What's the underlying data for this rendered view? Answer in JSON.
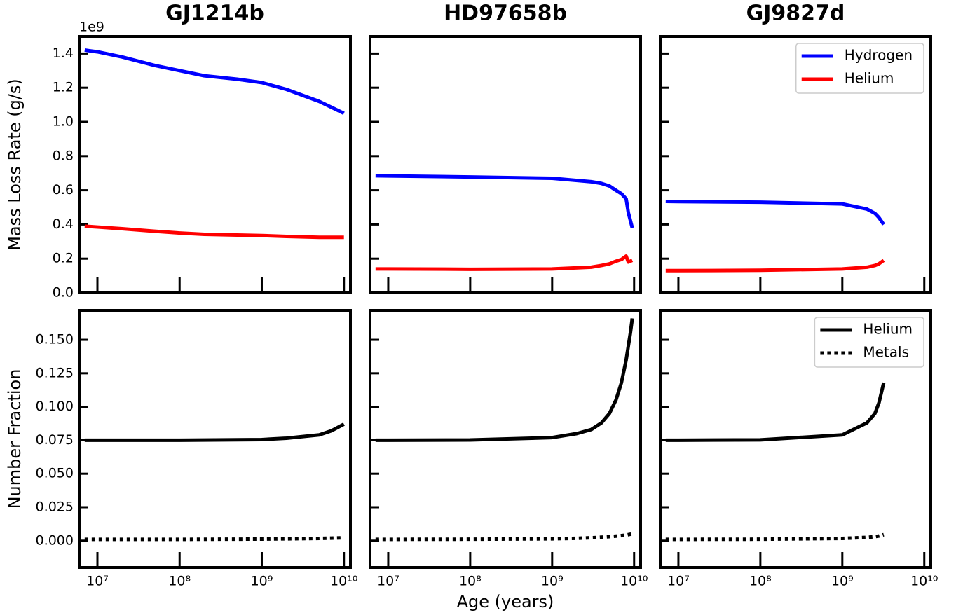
{
  "chart_data": [
    {
      "type": "line",
      "title": "GJ1214b",
      "ylabel": "Mass Loss Rate (g/s)",
      "offset_label": "1e9",
      "xscale": "log",
      "x": [
        7000000,
        10000000,
        20000000,
        50000000,
        100000000,
        200000000,
        500000000,
        1000000000,
        2000000000,
        5000000000,
        10000000000
      ],
      "series": [
        {
          "color": "#0000ff",
          "values": [
            1.42,
            1.41,
            1.38,
            1.33,
            1.3,
            1.27,
            1.25,
            1.23,
            1.19,
            1.12,
            1.05
          ]
        },
        {
          "color": "#ff0000",
          "values": [
            0.39,
            0.385,
            0.375,
            0.36,
            0.35,
            0.342,
            0.338,
            0.335,
            0.33,
            0.325,
            0.325
          ]
        }
      ],
      "xlim": [
        6000000,
        12000000000
      ],
      "ylim": [
        0,
        1.5
      ],
      "xticks": [
        10000000,
        100000000,
        1000000000,
        10000000000
      ],
      "xticklabels": false,
      "yticks": [
        {
          "value": 0,
          "label": "0.0"
        },
        0.2,
        0.4,
        0.6,
        0.8,
        {
          "value": 1,
          "label": "1.0"
        },
        1.2,
        1.4
      ],
      "yticklabels": true
    },
    {
      "type": "line",
      "title": "HD97658b",
      "xscale": "log",
      "x": [
        7000000,
        10000000,
        100000000,
        1000000000,
        3000000000,
        4000000000,
        5000000000,
        6000000000,
        7000000000,
        8000000000,
        8500000000,
        9500000000
      ],
      "series": [
        {
          "color": "#0000ff",
          "values": [
            0.685,
            0.684,
            0.678,
            0.67,
            0.65,
            0.64,
            0.625,
            0.6,
            0.58,
            0.55,
            0.47,
            0.38
          ]
        },
        {
          "color": "#ff0000",
          "values": [
            0.14,
            0.14,
            0.138,
            0.14,
            0.15,
            0.16,
            0.17,
            0.185,
            0.195,
            0.215,
            0.18,
            0.19
          ]
        }
      ],
      "xlim": [
        6000000,
        12000000000
      ],
      "ylim": [
        0,
        1.5
      ],
      "xticks": [
        10000000,
        100000000,
        1000000000,
        10000000000
      ],
      "xticklabels": false,
      "yticks": [
        0,
        0.2,
        0.4,
        0.6,
        0.8,
        1,
        1.2,
        1.4
      ],
      "yticklabels": false
    },
    {
      "type": "line",
      "title": "GJ9827d",
      "xscale": "log",
      "legend": "upper right",
      "x": [
        7000000,
        10000000,
        100000000,
        1000000000,
        2000000000,
        2500000000,
        2800000000,
        3200000000
      ],
      "series": [
        {
          "name": "Hydrogen",
          "color": "#0000ff",
          "values": [
            0.535,
            0.534,
            0.53,
            0.52,
            0.49,
            0.465,
            0.44,
            0.4
          ]
        },
        {
          "name": "Helium",
          "color": "#ff0000",
          "values": [
            0.13,
            0.13,
            0.132,
            0.14,
            0.15,
            0.16,
            0.17,
            0.19
          ]
        }
      ],
      "xlim": [
        6000000,
        12000000000
      ],
      "ylim": [
        0,
        1.5
      ],
      "xticks": [
        10000000,
        100000000,
        1000000000,
        10000000000
      ],
      "xticklabels": false,
      "yticks": [
        0,
        0.2,
        0.4,
        0.6,
        0.8,
        1,
        1.2,
        1.4
      ],
      "yticklabels": false
    },
    {
      "type": "line",
      "ylabel": "Number Fraction",
      "xscale": "log",
      "x": [
        7000000,
        10000000,
        100000000,
        1000000000,
        2000000000,
        5000000000,
        7000000000,
        10000000000
      ],
      "series": [
        {
          "color": "#000000",
          "values": [
            0.075,
            0.075,
            0.075,
            0.0755,
            0.0765,
            0.079,
            0.082,
            0.087
          ]
        },
        {
          "color": "#000000",
          "dash": "dotted",
          "values": [
            0.001,
            0.001,
            0.001,
            0.0012,
            0.0014,
            0.0017,
            0.0019,
            0.0022
          ]
        }
      ],
      "xlim": [
        6000000,
        12000000000
      ],
      "ylim": [
        -0.02,
        0.172
      ],
      "xticks": [
        {
          "value": 10000000,
          "label": "10⁷"
        },
        {
          "value": 100000000,
          "label": "10⁸"
        },
        {
          "value": 1000000000,
          "label": "10⁹"
        },
        {
          "value": 10000000000,
          "label": "10¹⁰"
        }
      ],
      "xticklabels": true,
      "yticks": [
        {
          "value": 0,
          "label": "0.000"
        },
        0.025,
        {
          "value": 0.05,
          "label": "0.050"
        },
        0.075,
        {
          "value": 0.1,
          "label": "0.100"
        },
        0.125,
        {
          "value": 0.15,
          "label": "0.150"
        }
      ],
      "yticklabels": true
    },
    {
      "type": "line",
      "xlabel": "Age (years)",
      "xscale": "log",
      "x": [
        7000000,
        10000000,
        100000000,
        1000000000,
        2000000000,
        3000000000,
        4000000000,
        5000000000,
        6000000000,
        7000000000,
        8000000000,
        9000000000,
        9500000000
      ],
      "series": [
        {
          "color": "#000000",
          "values": [
            0.075,
            0.075,
            0.0752,
            0.077,
            0.08,
            0.083,
            0.088,
            0.095,
            0.105,
            0.118,
            0.135,
            0.155,
            0.166
          ]
        },
        {
          "color": "#000000",
          "dash": "dotted",
          "values": [
            0.001,
            0.001,
            0.0011,
            0.0014,
            0.0018,
            0.0022,
            0.0026,
            0.003,
            0.0034,
            0.0038,
            0.0042,
            0.0048,
            0.0052
          ]
        }
      ],
      "xlim": [
        6000000,
        12000000000
      ],
      "ylim": [
        -0.02,
        0.172
      ],
      "xticks": [
        {
          "value": 10000000,
          "label": "10⁷"
        },
        {
          "value": 100000000,
          "label": "10⁸"
        },
        {
          "value": 1000000000,
          "label": "10⁹"
        },
        {
          "value": 10000000000,
          "label": "10¹⁰"
        }
      ],
      "xticklabels": true,
      "yticks": [
        0,
        0.025,
        0.05,
        0.075,
        0.1,
        0.125,
        0.15
      ],
      "yticklabels": false
    },
    {
      "type": "line",
      "xscale": "log",
      "legend": "upper right",
      "x": [
        7000000,
        10000000,
        100000000,
        1000000000,
        2000000000,
        2500000000,
        2800000000,
        3200000000
      ],
      "series": [
        {
          "name": "Helium",
          "color": "#000000",
          "values": [
            0.075,
            0.075,
            0.0753,
            0.079,
            0.088,
            0.095,
            0.103,
            0.118
          ]
        },
        {
          "name": "Metals",
          "color": "#000000",
          "dash": "dotted",
          "values": [
            0.001,
            0.001,
            0.0011,
            0.0017,
            0.0025,
            0.003,
            0.0035,
            0.0045
          ]
        }
      ],
      "xlim": [
        6000000,
        12000000000
      ],
      "ylim": [
        -0.02,
        0.172
      ],
      "xticks": [
        {
          "value": 10000000,
          "label": "10⁷"
        },
        {
          "value": 100000000,
          "label": "10⁸"
        },
        {
          "value": 1000000000,
          "label": "10⁹"
        },
        {
          "value": 10000000000,
          "label": "10¹⁰"
        }
      ],
      "xticklabels": true,
      "yticks": [
        0,
        0.025,
        0.05,
        0.075,
        0.1,
        0.125,
        0.15
      ],
      "yticklabels": false
    }
  ]
}
